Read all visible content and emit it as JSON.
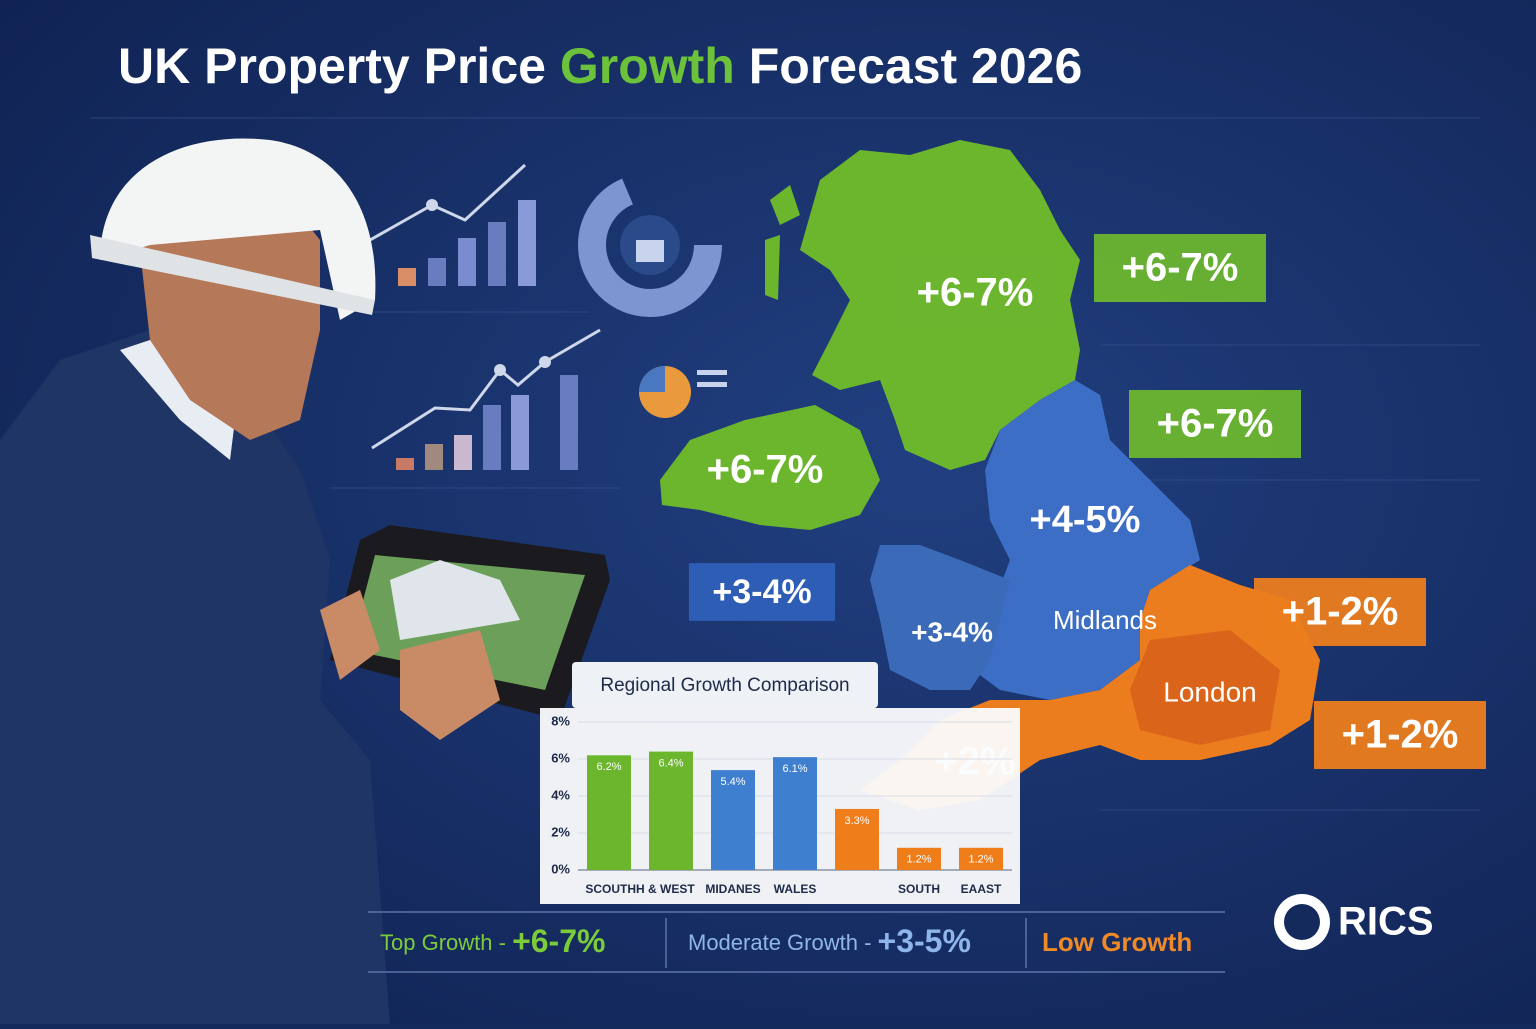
{
  "title": {
    "before": "UK Property Price",
    "highlight": "Growth",
    "after": "Forecast 2026"
  },
  "map_labels": [
    "+6-7%",
    "+6-7%",
    "+6-7%",
    "+6-7%",
    "+4-5%",
    "+3-4%",
    "+3-4%",
    "+1-2%",
    "+1-2%",
    "+2%"
  ],
  "region_names": [
    "Midlands",
    "London"
  ],
  "chart_data": {
    "type": "bar",
    "title": "Regional Growth Comparison",
    "categories": [
      "SCOUTHH & WEST",
      null,
      "MIDANES",
      "WALES",
      null,
      "SOUTH",
      "EAAST"
    ],
    "values": [
      6.2,
      6.4,
      5.4,
      6.1,
      3.3,
      1.2,
      1.2
    ],
    "value_labels": [
      "6.2%",
      "6.4%",
      "5.4%",
      "6.1%",
      "3.3%",
      "1.2%",
      "1.2%"
    ],
    "colors": [
      "#6cb62e",
      "#6cb62e",
      "#3f7fd0",
      "#3f7fd0",
      "#ef7d1a",
      "#ef7d1a",
      "#ef7d1a"
    ],
    "ylim": [
      0,
      8
    ],
    "yticks": [
      {
        "value": 0,
        "label": "0%"
      },
      {
        "value": 2,
        "label": "2%"
      },
      {
        "value": 4,
        "label": "4%"
      },
      {
        "value": 6,
        "label": "6%"
      },
      {
        "value": 8,
        "label": "8%"
      }
    ]
  },
  "legend": [
    {
      "label": "Top Growth -",
      "value": "+6-7%"
    },
    {
      "label": "Moderate Growth -",
      "value": "+3-5%"
    },
    {
      "label": "Low Growth"
    }
  ],
  "brand": "RICS"
}
